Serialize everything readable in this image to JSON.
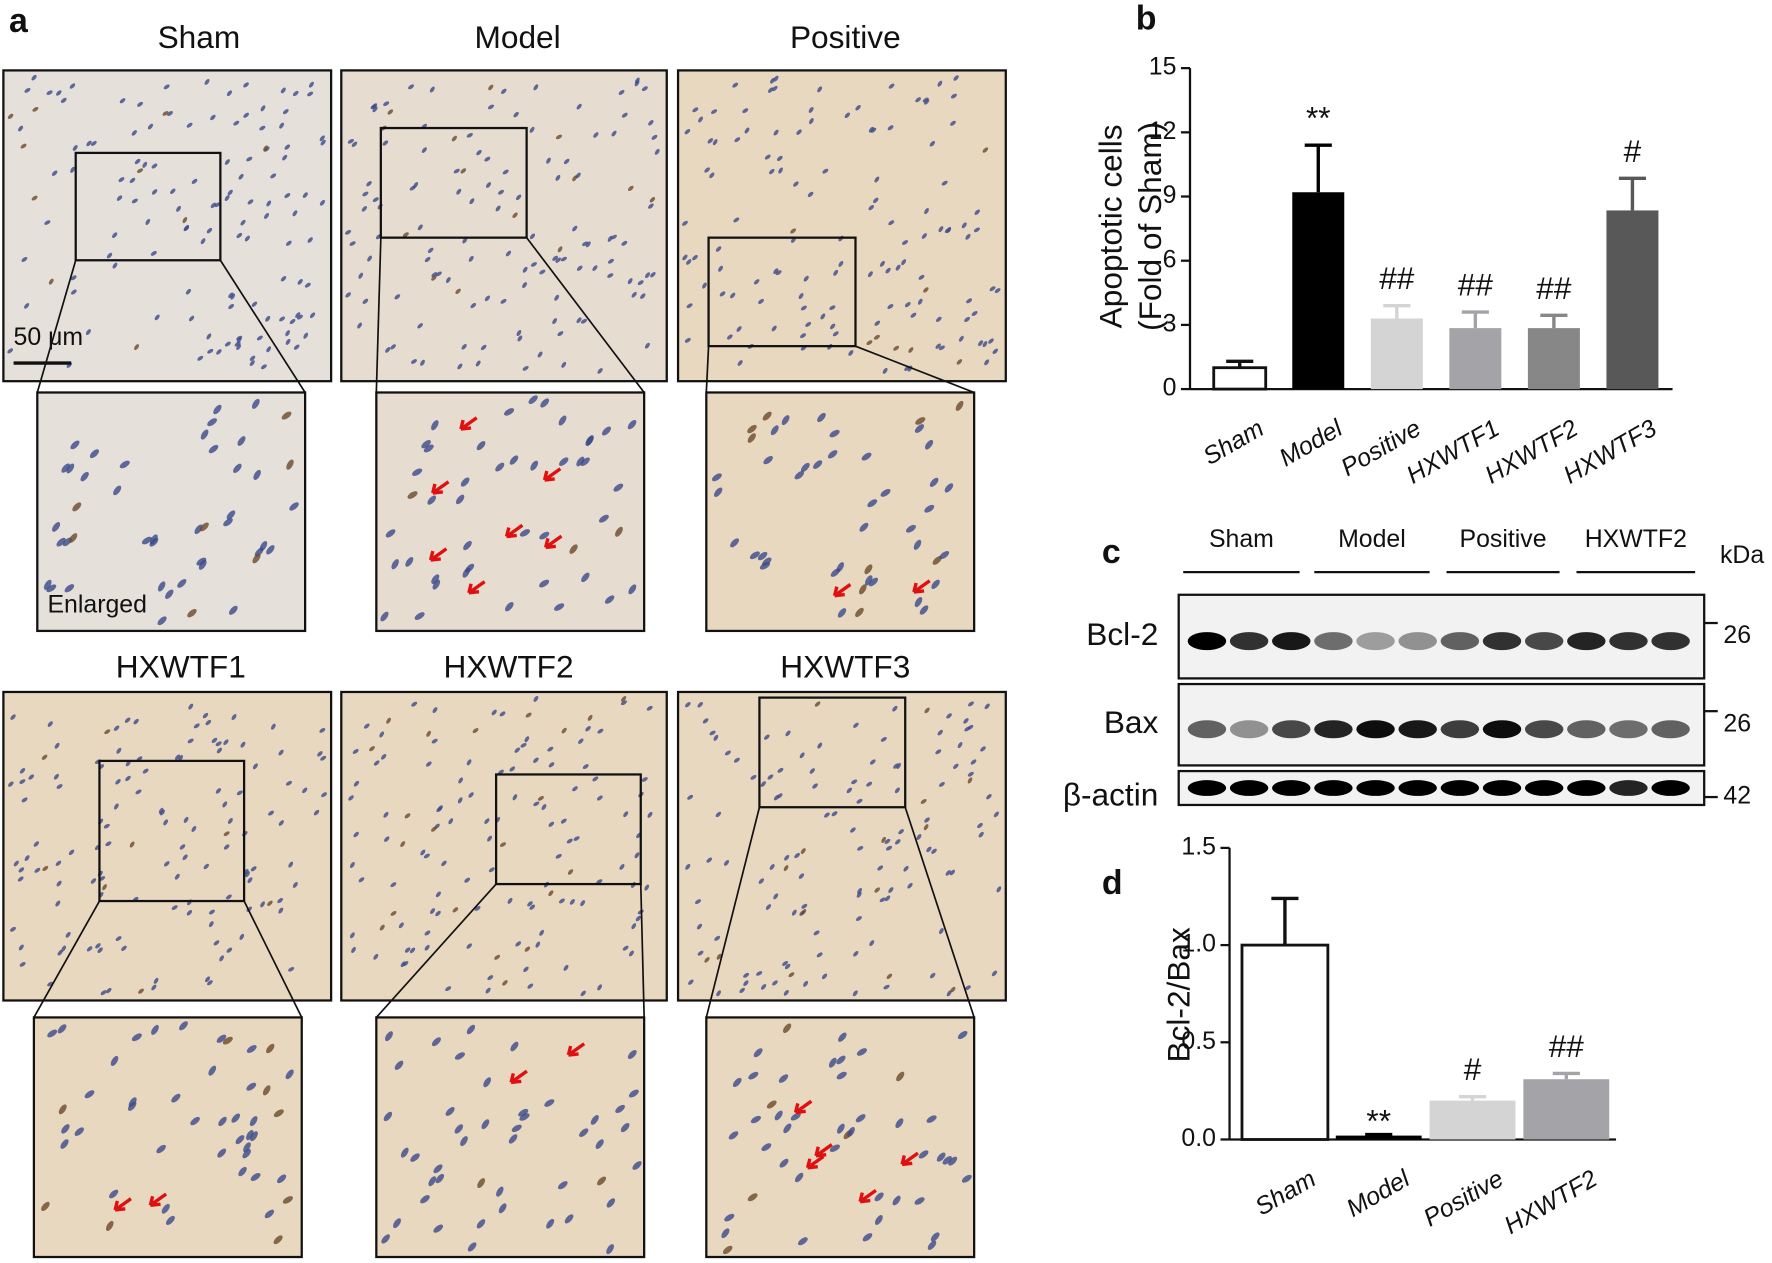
{
  "panel_a": {
    "label": "a",
    "groups": [
      "Sham",
      "Model",
      "Positive",
      "HXWTF1",
      "HXWTF2",
      "HXWTF3"
    ],
    "scale_bar": "50 μm",
    "enlarged_label": "Enlarged"
  },
  "panel_c": {
    "label": "c",
    "groups": [
      "Sham",
      "Model",
      "Positive",
      "HXWTF2"
    ],
    "unit": "kDa",
    "rows": [
      {
        "name": "Bcl-2",
        "kda": 26
      },
      {
        "name": "Bax",
        "kda": 26
      },
      {
        "name": "β-actin",
        "kda": 42
      }
    ]
  },
  "chart_data": [
    {
      "type": "bar",
      "panel_label": "b",
      "ylabel": [
        "Apoptotic cells",
        "(Fold of Sham)"
      ],
      "categories": [
        "Sham",
        "Model",
        "Positive",
        "HXWTF1",
        "HXWTF2",
        "HXWTF3"
      ],
      "values": [
        1.0,
        9.2,
        3.3,
        2.85,
        2.85,
        8.35
      ],
      "errors": [
        0.3,
        2.2,
        0.6,
        0.75,
        0.6,
        1.5
      ],
      "annotations": [
        null,
        "**",
        "##",
        "##",
        "##",
        "#"
      ],
      "colors": [
        "#ffffff",
        "#000000",
        "#d4d4d4",
        "#a3a3a8",
        "#878787",
        "#585858"
      ],
      "ylim": [
        0,
        15
      ],
      "yticks": [
        0,
        3,
        6,
        9,
        12,
        15
      ]
    },
    {
      "type": "bar",
      "panel_label": "d",
      "ylabel": [
        "Bcl-2/Bax"
      ],
      "categories": [
        "Sham",
        "Model",
        "Positive",
        "HXWTF2"
      ],
      "values": [
        1.0,
        0.02,
        0.2,
        0.31
      ],
      "errors": [
        0.24,
        0.005,
        0.02,
        0.03
      ],
      "annotations": [
        null,
        "**",
        "#",
        "##"
      ],
      "colors": [
        "#ffffff",
        "#000000",
        "#d4d4d4",
        "#a3a3a8"
      ],
      "ylim": [
        0,
        1.5
      ],
      "yticks": [
        {
          "value": 0,
          "label": "0.0"
        },
        0.5,
        {
          "value": 1.0,
          "label": "1.0"
        },
        1.5
      ]
    }
  ]
}
